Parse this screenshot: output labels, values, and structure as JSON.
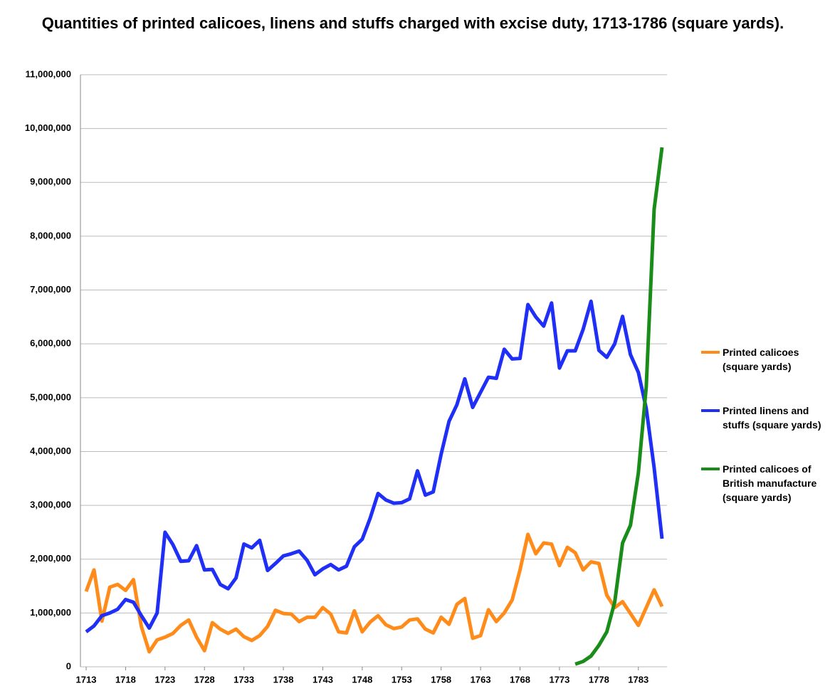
{
  "chart_data": {
    "type": "line",
    "title": "Quantities of printed calicoes, linens and stuffs charged with excise duty, 1713-1786 (square yards).",
    "x": [
      1713,
      1714,
      1715,
      1716,
      1717,
      1718,
      1719,
      1720,
      1721,
      1722,
      1723,
      1724,
      1725,
      1726,
      1727,
      1728,
      1729,
      1730,
      1731,
      1732,
      1733,
      1734,
      1735,
      1736,
      1737,
      1738,
      1739,
      1740,
      1741,
      1742,
      1743,
      1744,
      1745,
      1746,
      1747,
      1748,
      1749,
      1750,
      1751,
      1752,
      1753,
      1754,
      1755,
      1756,
      1757,
      1758,
      1759,
      1760,
      1761,
      1762,
      1763,
      1764,
      1765,
      1766,
      1767,
      1768,
      1769,
      1770,
      1771,
      1772,
      1773,
      1774,
      1775,
      1776,
      1777,
      1778,
      1779,
      1780,
      1781,
      1782,
      1783,
      1784,
      1785,
      1786
    ],
    "xlim": [
      1713,
      1786
    ],
    "xticks": [
      1713,
      1718,
      1723,
      1728,
      1733,
      1738,
      1743,
      1748,
      1753,
      1758,
      1763,
      1768,
      1773,
      1778,
      1783
    ],
    "ylim": [
      0,
      11000000
    ],
    "yticks": [
      0,
      {
        "value": 1000000,
        "label": "1,000,000"
      },
      {
        "value": 2000000,
        "label": "2,000,000"
      },
      {
        "value": 3000000,
        "label": "3,000,000"
      },
      {
        "value": 4000000,
        "label": "4,000,000"
      },
      {
        "value": 5000000,
        "label": "5,000,000"
      },
      {
        "value": 6000000,
        "label": "6,000,000"
      },
      {
        "value": 7000000,
        "label": "7,000,000"
      },
      {
        "value": 8000000,
        "label": "8,000,000"
      },
      {
        "value": 9000000,
        "label": "9,000,000"
      },
      {
        "value": 10000000,
        "label": "10,000,000"
      },
      {
        "value": 11000000,
        "label": "11,000,000"
      }
    ],
    "grid": true,
    "legend": "right",
    "series": [
      {
        "name": "Printed calicoes (square yards)",
        "color": "#ff8c1a",
        "values": [
          1400000,
          1800000,
          850000,
          1480000,
          1530000,
          1420000,
          1620000,
          750000,
          280000,
          500000,
          550000,
          620000,
          770000,
          870000,
          550000,
          300000,
          820000,
          700000,
          620000,
          700000,
          560000,
          490000,
          580000,
          750000,
          1050000,
          990000,
          980000,
          840000,
          920000,
          920000,
          1100000,
          980000,
          650000,
          630000,
          1040000,
          650000,
          830000,
          950000,
          780000,
          710000,
          740000,
          870000,
          890000,
          700000,
          630000,
          920000,
          790000,
          1160000,
          1270000,
          530000,
          580000,
          1060000,
          840000,
          1000000,
          1240000,
          1800000,
          2460000,
          2100000,
          2300000,
          2280000,
          1880000,
          2220000,
          2120000,
          1800000,
          1950000,
          1920000,
          1330000,
          1100000,
          1210000,
          990000,
          770000,
          1100000,
          1430000,
          1120000
        ]
      },
      {
        "name": "Printed linens and stuffs (square yards)",
        "color": "#1f2ff5",
        "values": [
          650000,
          760000,
          950000,
          1000000,
          1070000,
          1250000,
          1200000,
          950000,
          720000,
          1000000,
          2500000,
          2270000,
          1960000,
          1970000,
          2250000,
          1800000,
          1810000,
          1530000,
          1450000,
          1650000,
          2280000,
          2210000,
          2350000,
          1790000,
          1920000,
          2060000,
          2100000,
          2150000,
          1980000,
          1710000,
          1820000,
          1900000,
          1800000,
          1870000,
          2230000,
          2370000,
          2760000,
          3220000,
          3100000,
          3040000,
          3050000,
          3120000,
          3640000,
          3190000,
          3250000,
          3950000,
          4560000,
          4870000,
          5350000,
          4820000,
          5100000,
          5380000,
          5360000,
          5900000,
          5720000,
          5730000,
          6730000,
          6500000,
          6330000,
          6760000,
          5550000,
          5870000,
          5870000,
          6270000,
          6790000,
          5880000,
          5750000,
          6000000,
          6510000,
          5800000,
          5470000,
          4800000,
          3700000,
          2380000
        ]
      },
      {
        "name": "Printed calicoes of British manufacture (square yards)",
        "color": "#1a8c1a",
        "values": [
          null,
          null,
          null,
          null,
          null,
          null,
          null,
          null,
          null,
          null,
          null,
          null,
          null,
          null,
          null,
          null,
          null,
          null,
          null,
          null,
          null,
          null,
          null,
          null,
          null,
          null,
          null,
          null,
          null,
          null,
          null,
          null,
          null,
          null,
          null,
          null,
          null,
          null,
          null,
          null,
          null,
          null,
          null,
          null,
          null,
          null,
          null,
          null,
          null,
          null,
          null,
          null,
          null,
          null,
          null,
          null,
          null,
          null,
          null,
          null,
          null,
          null,
          50000,
          100000,
          200000,
          400000,
          650000,
          1200000,
          2300000,
          2630000,
          3600000,
          5200000,
          8500000,
          9650000
        ]
      }
    ]
  }
}
